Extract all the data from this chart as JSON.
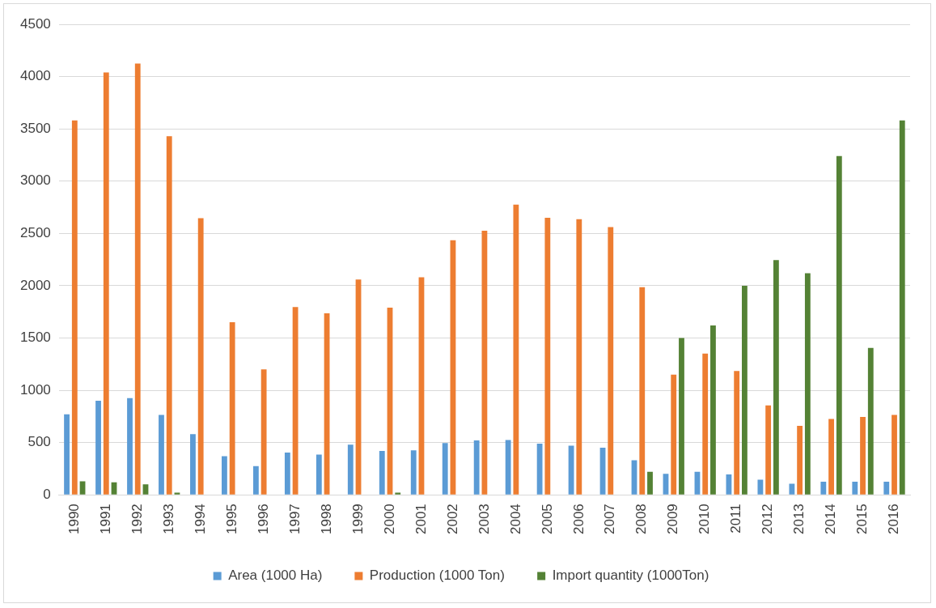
{
  "chart_data": {
    "type": "bar",
    "categories": [
      "1990",
      "1991",
      "1992",
      "1993",
      "1994",
      "1995",
      "1996",
      "1997",
      "1998",
      "1999",
      "2000",
      "2001",
      "2002",
      "2003",
      "2004",
      "2005",
      "2006",
      "2007",
      "2008",
      "2009",
      "2010",
      "2011",
      "2012",
      "2013",
      "2014",
      "2015",
      "2016"
    ],
    "series": [
      {
        "name": "Area (1000 Ha)",
        "color": "#5b9bd5",
        "values": [
          770,
          900,
          925,
          765,
          580,
          370,
          275,
          405,
          385,
          480,
          420,
          425,
          495,
          520,
          525,
          490,
          470,
          450,
          330,
          200,
          220,
          195,
          145,
          105,
          125,
          125,
          125
        ]
      },
      {
        "name": "Production (1000 Ton)",
        "color": "#ed7d31",
        "values": [
          3580,
          4040,
          4125,
          3430,
          2645,
          1650,
          1200,
          1795,
          1735,
          2060,
          1790,
          2080,
          2435,
          2525,
          2775,
          2650,
          2635,
          2560,
          1985,
          1150,
          1350,
          1185,
          855,
          660,
          725,
          745,
          765
        ]
      },
      {
        "name": "Import quantity (1000Ton)",
        "color": "#548235",
        "values": [
          130,
          120,
          100,
          20,
          0,
          0,
          0,
          0,
          0,
          0,
          20,
          0,
          0,
          0,
          0,
          0,
          0,
          0,
          220,
          1500,
          1620,
          2000,
          2245,
          2120,
          3240,
          1405,
          3580
        ]
      }
    ],
    "ylim": [
      0,
      4500
    ],
    "yticks": [
      0,
      500,
      1000,
      1500,
      2000,
      2500,
      3000,
      3500,
      4000,
      4500
    ],
    "grid": "y",
    "legend": "bottom"
  }
}
